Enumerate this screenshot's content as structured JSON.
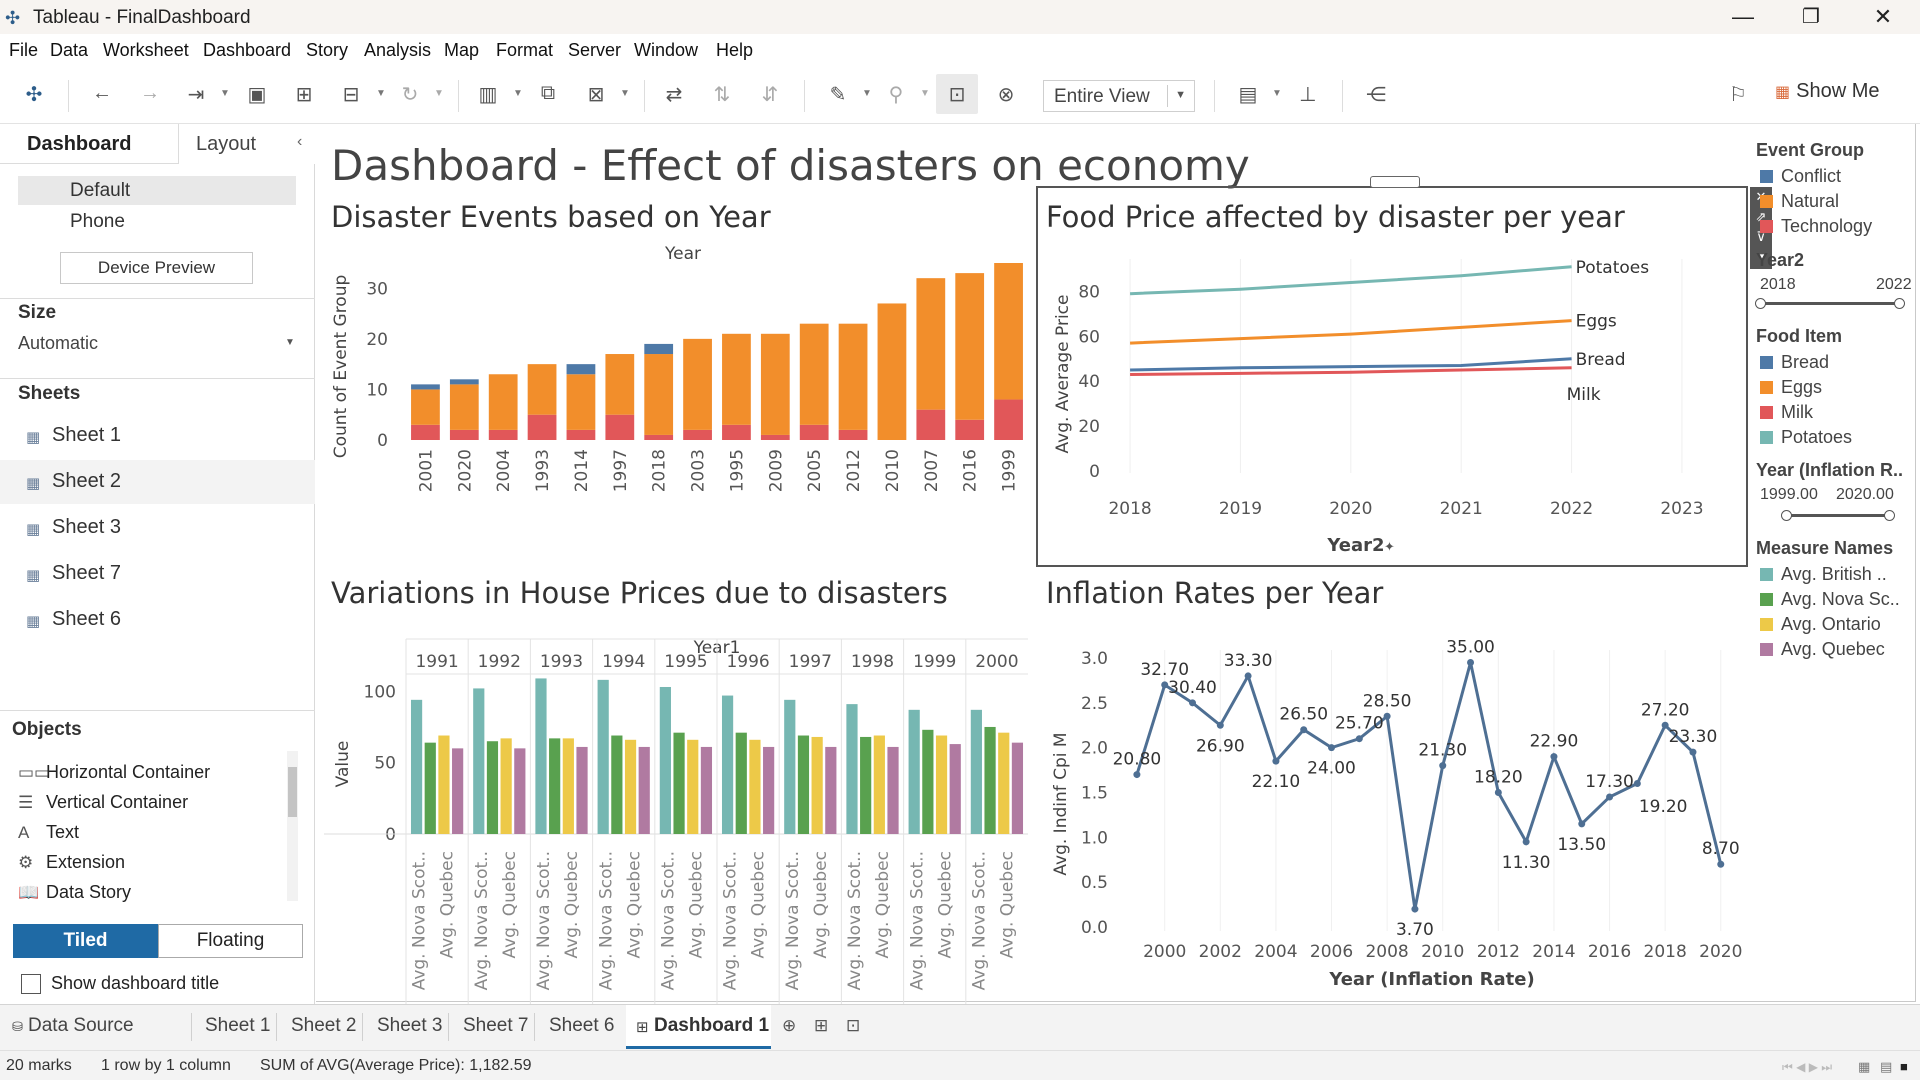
{
  "window": {
    "title": "Tableau - FinalDashboard",
    "min_glyph": "—",
    "max_glyph": "❐",
    "close_glyph": "✕",
    "logo_glyph": "✣"
  },
  "menu": [
    "File",
    "Data",
    "Worksheet",
    "Dashboard",
    "Story",
    "Analysis",
    "Map",
    "Format",
    "Server",
    "Window",
    "Help"
  ],
  "toolbar": {
    "fit_value": "Entire View",
    "show_me_label": "Show Me",
    "icons": [
      "tableau-icon",
      "undo-icon",
      "redo-icon",
      "replay-icon",
      "save-icon",
      "new-datasource-icon",
      "pause-icon",
      "refresh-icon",
      "new-sheet-icon",
      "duplicate-icon",
      "clear-icon",
      "swap-icon",
      "sort-asc-icon",
      "sort-desc-icon",
      "highlight-icon",
      "pin-icon",
      "labels-icon",
      "fix-axes-icon",
      "show-cards-icon",
      "presentation-icon",
      "share-icon"
    ]
  },
  "left_panel": {
    "tab_dashboard": "Dashboard",
    "tab_layout": "Layout",
    "collapse_glyph": "‹",
    "devices": [
      "Default",
      "Phone"
    ],
    "device_preview": "Device Preview",
    "size_heading": "Size",
    "size_value": "Automatic",
    "sheets_heading": "Sheets",
    "sheets": [
      "Sheet 1",
      "Sheet 2",
      "Sheet 3",
      "Sheet 7",
      "Sheet 6"
    ],
    "objects_heading": "Objects",
    "objects": [
      {
        "label": "Horizontal Container",
        "icon": "▭▭"
      },
      {
        "label": "Vertical Container",
        "icon": "☰"
      },
      {
        "label": "Text",
        "icon": "A"
      },
      {
        "label": "Extension",
        "icon": "⚙"
      },
      {
        "label": "Data Story",
        "icon": "📖"
      }
    ],
    "tiled": "Tiled",
    "floating": "Floating",
    "show_title": "Show dashboard title"
  },
  "dashboard": {
    "title": "Dashboard - Effect of disasters on economy"
  },
  "colors": {
    "conflict": "#4e79a7",
    "natural": "#f28e2b",
    "technology": "#e15759",
    "bread": "#4e79a7",
    "eggs": "#f28e2b",
    "milk": "#e15759",
    "potatoes": "#76b7b2",
    "british": "#76b7b2",
    "nova": "#59a14f",
    "ontario": "#edc948",
    "quebec": "#b07aa1",
    "inflation_line": "#4e6f93"
  },
  "chart_data": [
    {
      "type": "bar",
      "title": "Disaster Events based on Year",
      "top_axis_label": "Year",
      "ylabel": "Count of Event Group",
      "ylim": [
        0,
        35
      ],
      "yticks": [
        0,
        10,
        20,
        30
      ],
      "categories": [
        "2001",
        "2020",
        "2004",
        "1993",
        "2014",
        "1997",
        "2018",
        "2003",
        "1995",
        "2009",
        "2005",
        "2012",
        "2010",
        "2007",
        "2016",
        "1999"
      ],
      "stacked": true,
      "series": [
        {
          "name": "Technology",
          "values": [
            3,
            2,
            2,
            5,
            2,
            5,
            1,
            2,
            3,
            1,
            3,
            2,
            0,
            6,
            4,
            8
          ]
        },
        {
          "name": "Natural",
          "values": [
            7,
            9,
            11,
            10,
            11,
            12,
            16,
            18,
            18,
            20,
            20,
            21,
            27,
            26,
            29,
            27
          ]
        },
        {
          "name": "Conflict",
          "values": [
            1,
            1,
            0,
            0,
            2,
            0,
            2,
            0,
            0,
            0,
            0,
            0,
            0,
            0,
            0,
            0
          ]
        }
      ]
    },
    {
      "type": "line",
      "title": "Food Price affected by disaster per year",
      "xlabel": "Year2",
      "xlabel_suffix": "✦",
      "ylabel": "Avg. Average Price",
      "x": [
        2018,
        2019,
        2020,
        2021,
        2022
      ],
      "xticks": [
        2018,
        2019,
        2020,
        2021,
        2022,
        2023
      ],
      "xlim": [
        2017.8,
        2023.1
      ],
      "yticks": [
        0,
        20,
        40,
        60,
        80
      ],
      "ylim": [
        0,
        90
      ],
      "series": [
        {
          "name": "Potatoes",
          "values": [
            79,
            81,
            84,
            87,
            91
          ]
        },
        {
          "name": "Eggs",
          "values": [
            57,
            59,
            61,
            64,
            67
          ]
        },
        {
          "name": "Bread",
          "values": [
            45,
            46,
            46.5,
            47,
            50
          ]
        },
        {
          "name": "Milk",
          "values": [
            43,
            43.5,
            44,
            45,
            46
          ]
        }
      ]
    },
    {
      "type": "bar",
      "title": "Variations in House Prices due to disasters",
      "top_axis_label": "Year1",
      "ylabel": "Value",
      "ylim": [
        0,
        110
      ],
      "yticks": [
        0,
        50,
        100
      ],
      "years": [
        "1991",
        "1992",
        "1993",
        "1994",
        "1995",
        "1996",
        "1997",
        "1998",
        "1999",
        "2000"
      ],
      "measure_labels": [
        "Avg. Nova Scot..",
        "Avg. Quebec"
      ],
      "series": [
        {
          "name": "Avg. British ..",
          "values": [
            94,
            102,
            109,
            108,
            103,
            97,
            94,
            91,
            87,
            87
          ]
        },
        {
          "name": "Avg. Nova Sc..",
          "values": [
            64,
            65,
            67,
            69,
            71,
            71,
            69,
            68,
            73,
            75
          ]
        },
        {
          "name": "Avg. Ontario",
          "values": [
            69,
            67,
            67,
            66,
            66,
            66,
            68,
            69,
            69,
            71
          ]
        },
        {
          "name": "Avg. Quebec",
          "values": [
            60,
            60,
            61,
            61,
            61,
            61,
            61,
            61,
            63,
            64
          ]
        }
      ]
    },
    {
      "type": "line",
      "title": "Inflation Rates per Year",
      "xlabel": "Year (Inflation Rate)",
      "ylabel": "Avg. Indinf Cpi M",
      "x": [
        1999,
        2000,
        2001,
        2002,
        2003,
        2004,
        2005,
        2006,
        2007,
        2008,
        2009,
        2010,
        2011,
        2012,
        2013,
        2014,
        2015,
        2016,
        2017,
        2018,
        2019,
        2020
      ],
      "values": [
        1.7,
        2.7,
        2.5,
        2.25,
        2.8,
        1.85,
        2.2,
        2.0,
        2.1,
        2.35,
        0.2,
        1.8,
        2.95,
        1.5,
        0.95,
        1.9,
        1.15,
        1.45,
        1.6,
        2.25,
        1.95,
        0.7
      ],
      "data_labels": [
        "20.80",
        "32.70",
        "30.40",
        "26.90",
        "33.30",
        "22.10",
        "26.50",
        "24.00",
        "25.70",
        "28.50",
        "3.70",
        "21.30",
        "35.00",
        "18.20",
        "11.30",
        "22.90",
        "13.50",
        "17.30",
        "",
        "27.20",
        "23.30",
        "8.70"
      ],
      "extra_label": "19.20",
      "xticks": [
        2000,
        2002,
        2004,
        2006,
        2008,
        2010,
        2012,
        2014,
        2016,
        2018,
        2020
      ],
      "yticks": [
        "0.0",
        "0.5",
        "1.0",
        "1.5",
        "2.0",
        "2.5",
        "3.0"
      ],
      "ylim": [
        0,
        3.0
      ],
      "xlim": [
        1998.5,
        2020.8
      ]
    }
  ],
  "legends": {
    "event_group": {
      "title": "Event Group",
      "items": [
        "Conflict",
        "Natural",
        "Technology"
      ]
    },
    "year2": {
      "title": "Year2",
      "min": "2018",
      "max": "2022"
    },
    "food_item": {
      "title": "Food Item",
      "items": [
        "Bread",
        "Eggs",
        "Milk",
        "Potatoes"
      ]
    },
    "year_inflation": {
      "title": "Year (Inflation R..",
      "min": "1999.00",
      "max": "2020.00"
    },
    "measure_names": {
      "title": "Measure Names",
      "items": [
        "Avg. British ..",
        "Avg. Nova Sc..",
        "Avg. Ontario",
        "Avg. Quebec"
      ]
    }
  },
  "sheet_tabs": {
    "data_source": "Data Source",
    "tabs": [
      "Sheet 1",
      "Sheet 2",
      "Sheet 3",
      "Sheet 7",
      "Sheet 6"
    ],
    "active": "Dashboard 1"
  },
  "status": {
    "marks": "20 marks",
    "rows_cols": "1 row by 1 column",
    "sum": "SUM of AVG(Average Price): 1,182.59"
  }
}
